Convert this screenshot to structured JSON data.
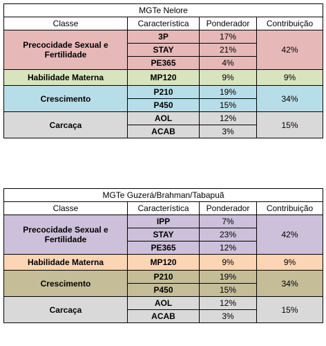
{
  "tables": [
    {
      "title": "MGTe Nelore",
      "headers": [
        "Classe",
        "Característica",
        "Ponderador",
        "Contribuição"
      ],
      "groups": [
        {
          "classe": [
            "Precocidade Sexual e",
            "Fertilidade"
          ],
          "color": "#e6b9b8",
          "rows": [
            {
              "car": "3P",
              "pond": "17%"
            },
            {
              "car": "STAY",
              "pond": "21%"
            },
            {
              "car": "PE365",
              "pond": "4%"
            }
          ],
          "contrib": "42%"
        },
        {
          "classe": [
            "Habilidade Materna"
          ],
          "color": "#d7e4bd",
          "rows": [
            {
              "car": "MP120",
              "pond": "9%"
            }
          ],
          "contrib": "9%"
        },
        {
          "classe": [
            "Crescimento"
          ],
          "color": "#b7dee8",
          "rows": [
            {
              "car": "P210",
              "pond": "19%"
            },
            {
              "car": "P450",
              "pond": "15%"
            }
          ],
          "contrib": "34%"
        },
        {
          "classe": [
            "Carcaça"
          ],
          "color": "#d9d9d9",
          "rows": [
            {
              "car": "AOL",
              "pond": "12%"
            },
            {
              "car": "ACAB",
              "pond": "3%"
            }
          ],
          "contrib": "15%"
        }
      ]
    },
    {
      "title": "MGTe Guzerá/Brahman/Tabapuã",
      "headers": [
        "Classe",
        "Característica",
        "Ponderador",
        "Contribuição"
      ],
      "groups": [
        {
          "classe": [
            "Precocidade Sexual e",
            "Fertilidade"
          ],
          "color": "#ccc0da",
          "rows": [
            {
              "car": "IPP",
              "pond": "7%"
            },
            {
              "car": "STAY",
              "pond": "23%"
            },
            {
              "car": "PE365",
              "pond": "12%"
            }
          ],
          "contrib": "42%"
        },
        {
          "classe": [
            "Habilidade Materna"
          ],
          "color": "#fcd5b4",
          "rows": [
            {
              "car": "MP120",
              "pond": "9%"
            }
          ],
          "contrib": "9%"
        },
        {
          "classe": [
            "Crescimento"
          ],
          "color": "#c4bd97",
          "rows": [
            {
              "car": "P210",
              "pond": "19%"
            },
            {
              "car": "P450",
              "pond": "15%"
            }
          ],
          "contrib": "34%"
        },
        {
          "classe": [
            "Carcaça"
          ],
          "color": "#d9d9d9",
          "rows": [
            {
              "car": "AOL",
              "pond": "12%"
            },
            {
              "car": "ACAB",
              "pond": "3%"
            }
          ],
          "contrib": "15%"
        }
      ]
    }
  ]
}
